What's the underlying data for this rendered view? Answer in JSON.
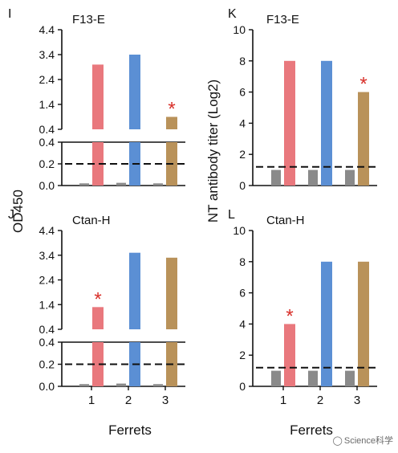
{
  "shared": {
    "left_ylabel": "OD450",
    "right_ylabel": "NT antibody titer (Log2)",
    "xlabel": "Ferrets",
    "x_ticks": [
      "1",
      "2",
      "3"
    ],
    "significance_mark": "*",
    "colors": {
      "control": "#8a8a8a",
      "ferret1": "#e9787d",
      "ferret2": "#5b8fd4",
      "ferret3": "#b9925a",
      "asterisk": "#d8302a",
      "threshold": "#111111"
    }
  },
  "watermark": {
    "icon": "wechat-icon",
    "text": "Science科学"
  },
  "chart_data": [
    {
      "panel": "I",
      "type": "bar",
      "title": "F13-E",
      "ylabel": "OD450",
      "axis_break": true,
      "upper_ylim": [
        0.4,
        4.4
      ],
      "upper_ticks": [
        "4.4",
        "3.4",
        "2.4",
        "1.4",
        "0.4"
      ],
      "lower_ylim": [
        0,
        0.4
      ],
      "lower_ticks": [
        "0.4",
        "0.2",
        "0.0"
      ],
      "categories": [
        "1",
        "2",
        "3"
      ],
      "series": [
        {
          "values": [
            0.02,
            0.025,
            0.02
          ]
        },
        {
          "values": [
            3.0,
            3.4,
            0.9
          ]
        }
      ],
      "threshold": 0.2,
      "significant": [
        3
      ]
    },
    {
      "panel": "K",
      "type": "bar",
      "title": "F13-E",
      "ylabel": "NT antibody titer (Log2)",
      "ylim": [
        0,
        10
      ],
      "y_ticks": [
        "10",
        "8",
        "6",
        "4",
        "2",
        "0"
      ],
      "categories": [
        "1",
        "2",
        "3"
      ],
      "series": [
        {
          "values": [
            1,
            1,
            1
          ]
        },
        {
          "values": [
            8,
            8,
            6
          ]
        }
      ],
      "threshold": 1.2,
      "significant": [
        3
      ]
    },
    {
      "panel": "J",
      "type": "bar",
      "title": "Ctan-H",
      "ylabel": "OD450",
      "axis_break": true,
      "upper_ylim": [
        0.4,
        4.4
      ],
      "upper_ticks": [
        "4.4",
        "3.4",
        "2.4",
        "1.4",
        "0.4"
      ],
      "lower_ylim": [
        0,
        0.4
      ],
      "lower_ticks": [
        "0.4",
        "0.2",
        "0.0"
      ],
      "categories": [
        "1",
        "2",
        "3"
      ],
      "series": [
        {
          "values": [
            0.02,
            0.025,
            0.02
          ]
        },
        {
          "values": [
            1.3,
            3.5,
            3.3
          ]
        }
      ],
      "threshold": 0.2,
      "significant": [
        1
      ]
    },
    {
      "panel": "L",
      "type": "bar",
      "title": "Ctan-H",
      "ylabel": "NT antibody titer (Log2)",
      "ylim": [
        0,
        10
      ],
      "y_ticks": [
        "10",
        "8",
        "6",
        "4",
        "2",
        "0"
      ],
      "categories": [
        "1",
        "2",
        "3"
      ],
      "series": [
        {
          "values": [
            1,
            1,
            1
          ]
        },
        {
          "values": [
            4,
            8,
            8
          ]
        }
      ],
      "threshold": 1.2,
      "significant": [
        1
      ]
    }
  ]
}
